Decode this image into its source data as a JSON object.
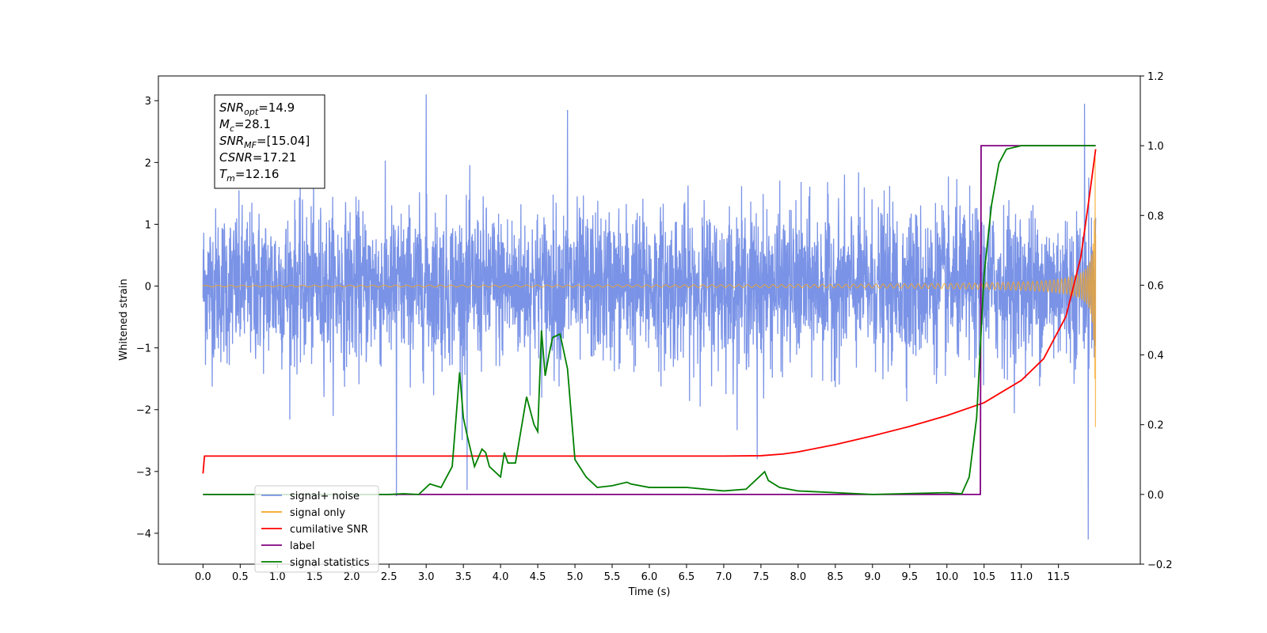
{
  "chart_data": {
    "type": "line",
    "xlabel": "Time (s)",
    "ylabel": "Whitened strain",
    "xlim": [
      -0.6,
      12.6
    ],
    "ylim": [
      -4.5,
      3.4
    ],
    "y2lim": [
      -0.2,
      1.2
    ],
    "x_ticks": [
      0.0,
      0.5,
      1.0,
      1.5,
      2.0,
      2.5,
      3.0,
      3.5,
      4.0,
      4.5,
      5.0,
      5.5,
      6.0,
      6.5,
      7.0,
      7.5,
      8.0,
      8.5,
      9.0,
      9.5,
      10.0,
      10.5,
      11.0,
      11.5
    ],
    "x_tick_labels": [
      "0.0",
      "0.5",
      "1.0",
      "1.5",
      "2.0",
      "2.5",
      "3.0",
      "3.5",
      "4.0",
      "4.5",
      "5.0",
      "5.5",
      "6.0",
      "6.5",
      "7.0",
      "7.5",
      "8.0",
      "8.5",
      "9.0",
      "9.5",
      "10.0",
      "10.5",
      "11.0",
      "11.5"
    ],
    "y_ticks": [
      -4,
      -3,
      -2,
      -1,
      0,
      1,
      2,
      3
    ],
    "y_tick_labels": [
      "−4",
      "−3",
      "−2",
      "−1",
      "0",
      "1",
      "2",
      "3"
    ],
    "y2_ticks": [
      -0.2,
      0.0,
      0.2,
      0.4,
      0.6,
      0.8,
      1.0,
      1.2
    ],
    "y2_tick_labels": [
      "−0.2",
      "0.0",
      "0.2",
      "0.4",
      "0.6",
      "0.8",
      "1.0",
      "1.2"
    ],
    "legend_position": "lower-left",
    "annotation": {
      "lines": [
        {
          "sym": "SNR",
          "sub": "opt",
          "val": "=14.9"
        },
        {
          "sym": "M",
          "sub": "c",
          "val": "=28.1"
        },
        {
          "sym": "SNR",
          "sub": "MF",
          "val": "=[15.04]"
        },
        {
          "sym": "CSNR",
          "sub": "",
          "val": "=17.21"
        },
        {
          "sym": "T",
          "sub": "m",
          "val": "=12.16"
        }
      ]
    },
    "series": [
      {
        "name": "signal+ noise",
        "axis": "left",
        "color": "#7a93e6",
        "kind": "noise",
        "x_range": [
          0,
          12.0
        ],
        "amplitude": 1.5,
        "extremes": [
          [
            3.0,
            3.1
          ],
          [
            4.9,
            2.85
          ],
          [
            11.85,
            2.95
          ],
          [
            11.9,
            -4.1
          ],
          [
            2.6,
            -3.4
          ],
          [
            3.55,
            -3.3
          ],
          [
            7.45,
            -2.8
          ]
        ]
      },
      {
        "name": "signal only",
        "axis": "left",
        "color": "#f5a623",
        "kind": "chirp",
        "x_range": [
          0,
          12.0
        ],
        "merger_time": 12.0,
        "peak_amplitude": 2.3
      },
      {
        "name": "cumilative SNR",
        "axis": "right",
        "color": "#ff0000",
        "x": [
          0.0,
          0.02,
          0.05,
          1.0,
          2.0,
          3.0,
          4.0,
          5.0,
          6.0,
          7.0,
          7.5,
          7.8,
          8.0,
          8.5,
          9.0,
          9.5,
          10.0,
          10.5,
          11.0,
          11.3,
          11.6,
          11.8,
          11.9,
          12.0
        ],
        "y": [
          0.06,
          0.11,
          0.11,
          0.11,
          0.11,
          0.11,
          0.11,
          0.11,
          0.11,
          0.11,
          0.111,
          0.116,
          0.122,
          0.143,
          0.168,
          0.195,
          0.226,
          0.263,
          0.327,
          0.389,
          0.51,
          0.68,
          0.83,
          0.99
        ]
      },
      {
        "name": "label",
        "axis": "right",
        "color": "#800080",
        "x": [
          0.0,
          10.45,
          10.46,
          12.0
        ],
        "y": [
          0.0,
          0.0,
          1.0,
          1.0
        ]
      },
      {
        "name": "signal statistics",
        "axis": "right",
        "color": "#008000",
        "x": [
          0.0,
          2.5,
          2.7,
          2.9,
          3.05,
          3.2,
          3.35,
          3.45,
          3.5,
          3.55,
          3.65,
          3.75,
          3.8,
          3.85,
          4.0,
          4.05,
          4.1,
          4.2,
          4.35,
          4.45,
          4.5,
          4.55,
          4.6,
          4.65,
          4.7,
          4.8,
          4.9,
          5.0,
          5.15,
          5.3,
          5.5,
          5.7,
          5.75,
          6.0,
          6.5,
          7.0,
          7.3,
          7.55,
          7.6,
          7.75,
          8.0,
          9.0,
          10.0,
          10.2,
          10.3,
          10.4,
          10.5,
          10.6,
          10.7,
          10.8,
          11.0,
          12.0
        ],
        "y": [
          0.0,
          0.0,
          0.002,
          0.0,
          0.03,
          0.02,
          0.08,
          0.35,
          0.22,
          0.17,
          0.08,
          0.13,
          0.12,
          0.08,
          0.05,
          0.12,
          0.09,
          0.09,
          0.28,
          0.2,
          0.18,
          0.47,
          0.34,
          0.4,
          0.45,
          0.46,
          0.36,
          0.1,
          0.05,
          0.02,
          0.025,
          0.035,
          0.03,
          0.02,
          0.02,
          0.01,
          0.015,
          0.065,
          0.04,
          0.02,
          0.01,
          0.0,
          0.005,
          0.002,
          0.05,
          0.22,
          0.63,
          0.83,
          0.95,
          0.99,
          1.0,
          1.0
        ]
      }
    ]
  }
}
